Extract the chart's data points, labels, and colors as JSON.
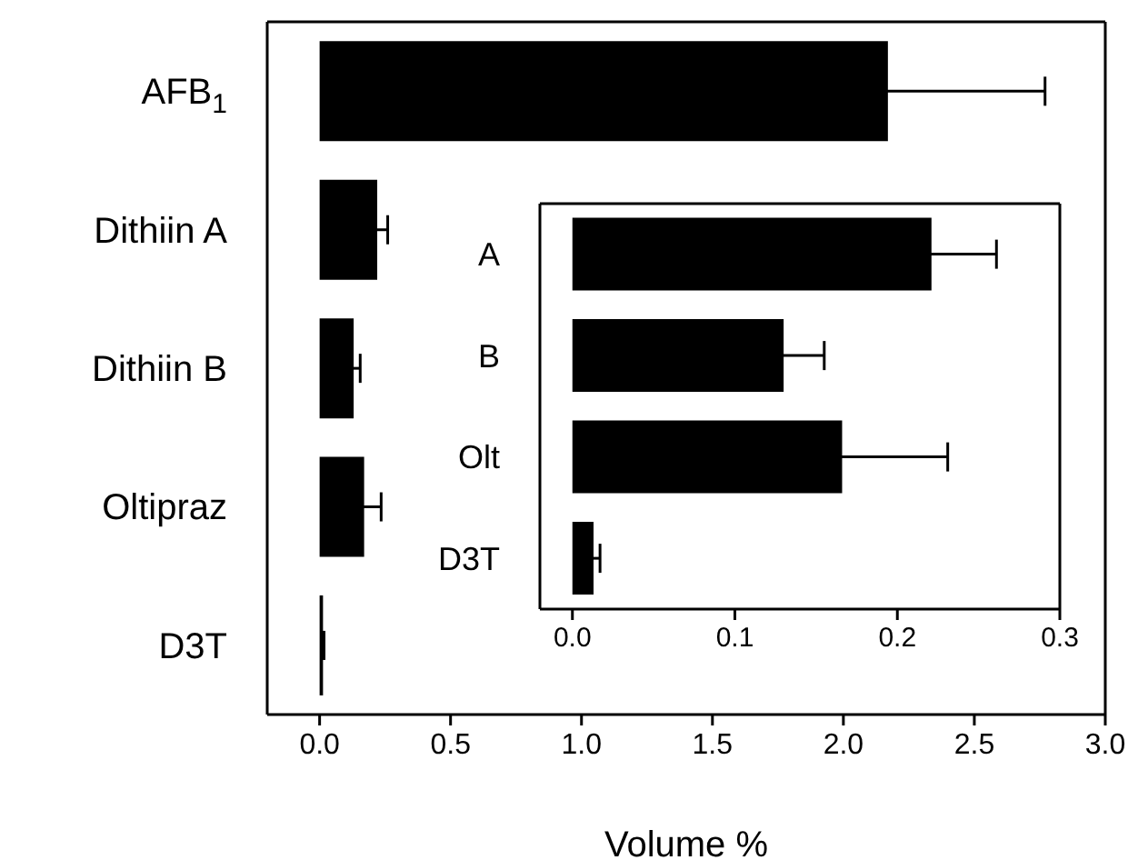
{
  "chart_data": [
    {
      "type": "bar",
      "orientation": "horizontal",
      "xlabel": "Volume %",
      "categories": [
        "AFB$_{1}$",
        "Dithiin A",
        "Dithiin B",
        "Oltipraz",
        "D3T"
      ],
      "values": [
        2.17,
        0.22,
        0.13,
        0.17,
        0.013
      ],
      "errors": [
        0.6,
        0.04,
        0.025,
        0.065,
        0.004
      ],
      "color": "#000000",
      "xlim": [
        -0.2,
        3.0
      ],
      "xticks": [
        {
          "value": 0,
          "label": "0.0"
        },
        {
          "value": 0.5,
          "label": "0.5"
        },
        {
          "value": 1,
          "label": "1.0"
        },
        {
          "value": 1.5,
          "label": "1.5"
        },
        {
          "value": 2,
          "label": "2.0"
        },
        {
          "value": 2.5,
          "label": "2.5"
        },
        {
          "value": 3,
          "label": "3.0"
        }
      ]
    },
    {
      "type": "bar",
      "orientation": "horizontal",
      "categories": [
        "A",
        "B",
        "Olt",
        "D3T"
      ],
      "values": [
        0.221,
        0.13,
        0.166,
        0.013
      ],
      "errors": [
        0.04,
        0.025,
        0.065,
        0.004
      ],
      "color": "#000000",
      "xlim": [
        -0.02,
        0.3
      ],
      "xticks": [
        {
          "value": 0,
          "label": "0.0"
        },
        {
          "value": 0.1,
          "label": "0.1"
        },
        {
          "value": 0.2,
          "label": "0.2"
        },
        {
          "value": 0.3,
          "label": "0.3"
        }
      ]
    }
  ]
}
